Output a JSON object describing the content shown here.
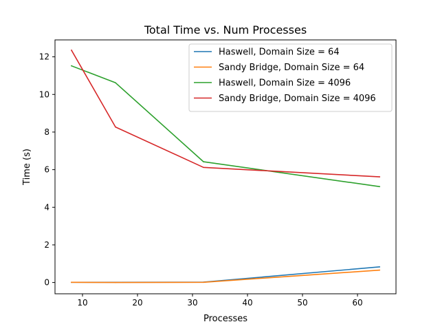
{
  "chart_data": {
    "type": "line",
    "title": "Total Time vs. Num Processes",
    "xlabel": "Processes",
    "ylabel": "Time (s)",
    "xlim": [
      5,
      67
    ],
    "ylim": [
      -0.6,
      12.9
    ],
    "xticks": [
      10,
      20,
      30,
      40,
      50,
      60
    ],
    "yticks": [
      0,
      2,
      4,
      6,
      8,
      10,
      12
    ],
    "grid": false,
    "legend_position": "top-right",
    "x": [
      8,
      16,
      32,
      64
    ],
    "series": [
      {
        "name": "Haswell, Domain Size = 64",
        "color": "#1f77b4",
        "values": [
          0.01,
          0.01,
          0.02,
          0.83
        ]
      },
      {
        "name": "Sandy Bridge, Domain Size = 64",
        "color": "#ff7f0e",
        "values": [
          0.01,
          0.0,
          0.01,
          0.66
        ]
      },
      {
        "name": "Haswell, Domain Size = 4096",
        "color": "#2ca02c",
        "values": [
          11.52,
          10.62,
          6.42,
          5.1
        ]
      },
      {
        "name": "Sandy Bridge, Domain Size = 4096",
        "color": "#d62728",
        "values": [
          12.35,
          8.27,
          6.12,
          5.62
        ]
      }
    ]
  }
}
